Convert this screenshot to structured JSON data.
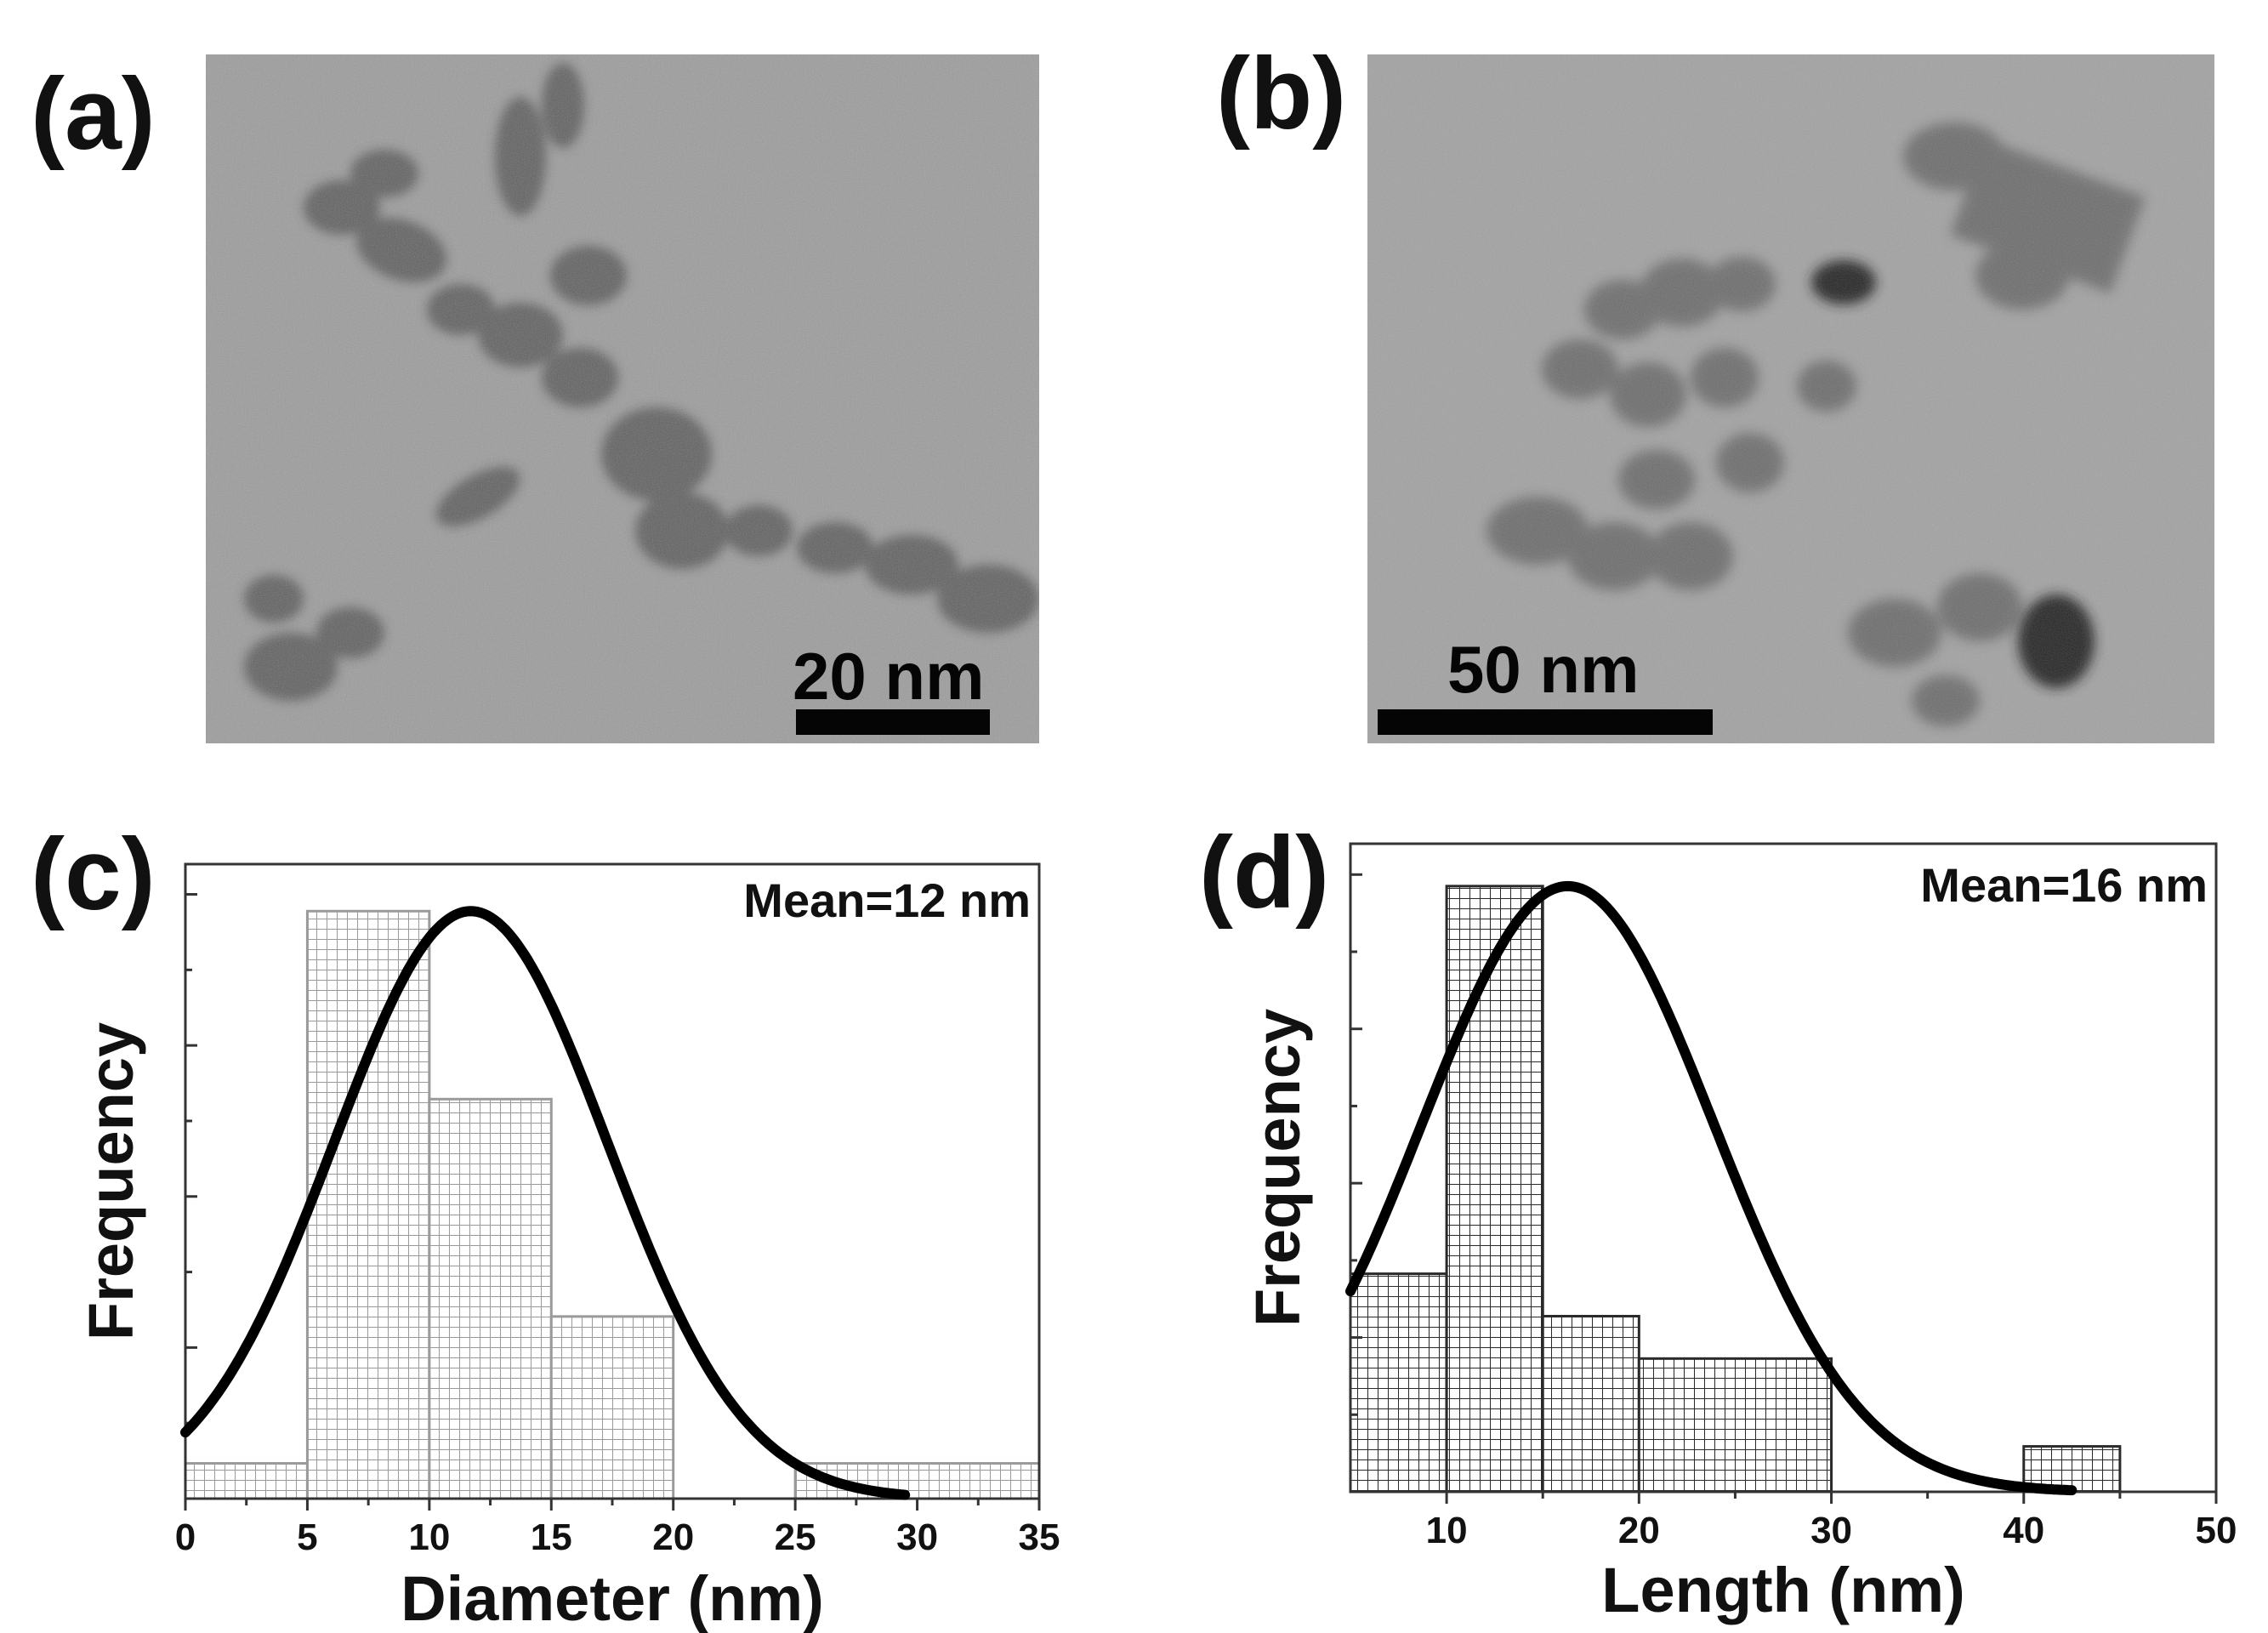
{
  "panels": {
    "a": {
      "label": "(a)",
      "scale_text": "20 nm"
    },
    "b": {
      "label": "(b)",
      "scale_text": "50 nm"
    },
    "c": {
      "label": "(c)"
    },
    "d": {
      "label": "(d)"
    }
  },
  "colors": {
    "tem_background": "#9a9a9a",
    "particle": "#4a4a4a",
    "curve": "#000000",
    "hist_c": "#9a9a9a",
    "hist_d": "#2a2a2a"
  },
  "chart_data": [
    {
      "type": "bar",
      "panel": "c",
      "annotation": "Mean=12 nm",
      "xlabel": "Diameter (nm)",
      "ylabel": "Frequency",
      "xlim": [
        0,
        35
      ],
      "ylim": [
        0,
        1.08
      ],
      "x_ticks": [
        0,
        5,
        10,
        15,
        20,
        25,
        30,
        35
      ],
      "y_tick_labels_shown": false,
      "bins": [
        {
          "x0": 0,
          "x1": 5,
          "value": 0.06
        },
        {
          "x0": 5,
          "x1": 10,
          "value": 1.0
        },
        {
          "x0": 10,
          "x1": 15,
          "value": 0.68
        },
        {
          "x0": 15,
          "x1": 20,
          "value": 0.31
        },
        {
          "x0": 25,
          "x1": 35,
          "value": 0.06
        }
      ],
      "fit_curve": {
        "type": "gaussian",
        "mean": 11.7,
        "sigma": 5.6,
        "peak": 1.0,
        "x_range": [
          0,
          29.5
        ]
      }
    },
    {
      "type": "bar",
      "panel": "d",
      "annotation": "Mean=16 nm",
      "xlabel": "Length (nm)",
      "ylabel": "Frequency",
      "xlim": [
        5,
        50
      ],
      "ylim": [
        0,
        1.07
      ],
      "x_ticks": [
        10,
        20,
        30,
        40,
        50
      ],
      "y_tick_labels_shown": false,
      "bins": [
        {
          "x0": 5,
          "x1": 10,
          "value": 0.36
        },
        {
          "x0": 10,
          "x1": 15,
          "value": 1.0
        },
        {
          "x0": 15,
          "x1": 20,
          "value": 0.29
        },
        {
          "x0": 20,
          "x1": 30,
          "value": 0.22
        },
        {
          "x0": 40,
          "x1": 45,
          "value": 0.075
        }
      ],
      "fit_curve": {
        "type": "gaussian",
        "mean": 16.3,
        "sigma": 7.6,
        "peak": 1.0,
        "x_range": [
          5,
          42.5
        ]
      }
    }
  ]
}
